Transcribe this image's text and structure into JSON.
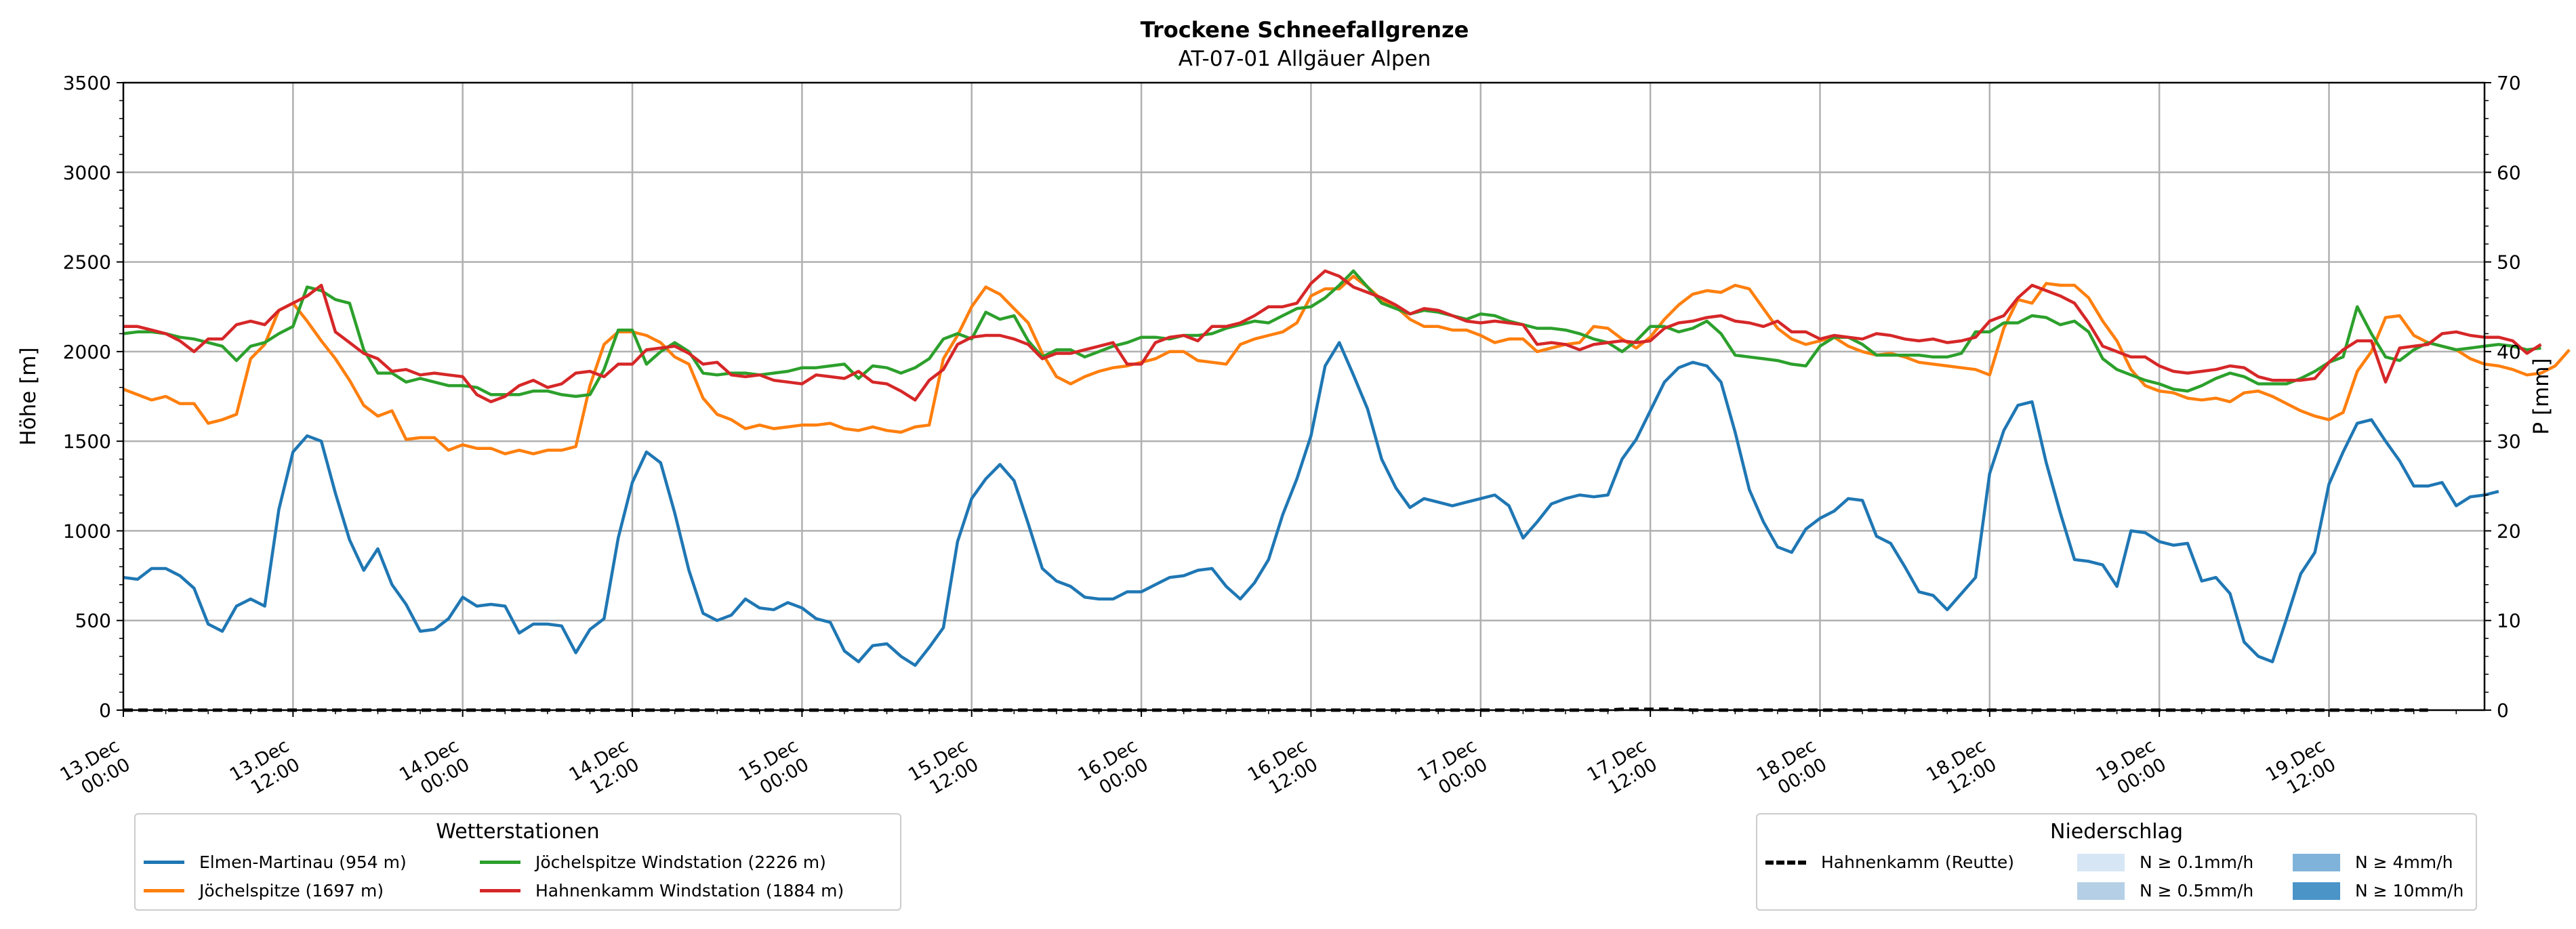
{
  "chart_data": {
    "type": "line",
    "title": "Trockene Schneefallgrenze",
    "subtitle": "AT-07-01 Allgäuer Alpen",
    "ylabel": "Höhe [m]",
    "ylabel_right": "P [mm]",
    "ylim": [
      0,
      3500
    ],
    "ylim_right": [
      0,
      70
    ],
    "yticks": [
      "0",
      "500",
      "1000",
      "1500",
      "2000",
      "2500",
      "3000",
      "3500"
    ],
    "yticks_right": [
      "0",
      "10",
      "20",
      "30",
      "40",
      "50",
      "60",
      "70"
    ],
    "xlim_hours": [
      0,
      167
    ],
    "xtick_labels": [
      [
        "13.Dec",
        "00:00"
      ],
      [
        "13.Dec",
        "12:00"
      ],
      [
        "14.Dec",
        "00:00"
      ],
      [
        "14.Dec",
        "12:00"
      ],
      [
        "15.Dec",
        "00:00"
      ],
      [
        "15.Dec",
        "12:00"
      ],
      [
        "16.Dec",
        "00:00"
      ],
      [
        "16.Dec",
        "12:00"
      ],
      [
        "17.Dec",
        "00:00"
      ],
      [
        "17.Dec",
        "12:00"
      ],
      [
        "18.Dec",
        "00:00"
      ],
      [
        "18.Dec",
        "12:00"
      ],
      [
        "19.Dec",
        "00:00"
      ],
      [
        "19.Dec",
        "12:00"
      ]
    ],
    "grid": true,
    "series": [
      {
        "name": "Elmen-Martinau (954 m)",
        "color": "#1f77b4",
        "values": [
          740,
          730,
          790,
          790,
          750,
          680,
          480,
          440,
          580,
          620,
          580,
          1120,
          1440,
          1530,
          1500,
          1210,
          950,
          780,
          900,
          700,
          590,
          440,
          450,
          510,
          630,
          580,
          590,
          580,
          430,
          480,
          480,
          470,
          320,
          450,
          510,
          960,
          1270,
          1440,
          1380,
          1100,
          780,
          540,
          500,
          530,
          620,
          570,
          560,
          600,
          570,
          510,
          490,
          330,
          270,
          360,
          370,
          300,
          250,
          350,
          460,
          940,
          1180,
          1290,
          1370,
          1280,
          1040,
          790,
          720,
          690,
          630,
          620,
          620,
          660,
          660,
          700,
          740,
          750,
          780,
          790,
          690,
          620,
          710,
          840,
          1090,
          1290,
          1530,
          1920,
          2050,
          1870,
          1680,
          1400,
          1240,
          1130,
          1180,
          1160,
          1140,
          1160,
          1180,
          1200,
          1140,
          960,
          1050,
          1150,
          1180,
          1200,
          1190,
          1200,
          1400,
          1510,
          1670,
          1830,
          1910,
          1940,
          1920,
          1830,
          1550,
          1230,
          1050,
          910,
          880,
          1010,
          1070,
          1110,
          1180,
          1170,
          970,
          930,
          800,
          660,
          640,
          560,
          650,
          740,
          1320,
          1560,
          1700,
          1720,
          1380,
          1100,
          840,
          830,
          810,
          690,
          1000,
          990,
          940,
          920,
          930,
          720,
          740,
          650,
          380,
          300,
          270,
          510,
          760,
          880,
          1260,
          1440,
          1600,
          1620,
          1500,
          1390,
          1250,
          1250,
          1270,
          1140,
          1190,
          1200,
          1220
        ]
      },
      {
        "name": "Jöchelspitze (1697 m)",
        "color": "#ff7f0e",
        "values": [
          1790,
          1760,
          1730,
          1750,
          1710,
          1710,
          1600,
          1620,
          1650,
          1960,
          2040,
          2230,
          2270,
          2170,
          2060,
          1960,
          1840,
          1700,
          1640,
          1670,
          1510,
          1520,
          1520,
          1450,
          1480,
          1460,
          1460,
          1430,
          1450,
          1430,
          1450,
          1450,
          1470,
          1810,
          2040,
          2110,
          2110,
          2090,
          2050,
          1970,
          1930,
          1740,
          1650,
          1620,
          1570,
          1590,
          1570,
          1580,
          1590,
          1590,
          1600,
          1570,
          1560,
          1580,
          1560,
          1550,
          1580,
          1590,
          1960,
          2090,
          2250,
          2360,
          2320,
          2240,
          2160,
          1990,
          1860,
          1820,
          1860,
          1890,
          1910,
          1920,
          1940,
          1960,
          2000,
          2000,
          1950,
          1940,
          1930,
          2040,
          2070,
          2090,
          2110,
          2160,
          2310,
          2350,
          2350,
          2420,
          2360,
          2290,
          2250,
          2180,
          2140,
          2140,
          2120,
          2120,
          2090,
          2050,
          2070,
          2070,
          2000,
          2020,
          2040,
          2050,
          2140,
          2130,
          2070,
          2020,
          2080,
          2180,
          2260,
          2320,
          2340,
          2330,
          2370,
          2350,
          2240,
          2130,
          2070,
          2040,
          2060,
          2080,
          2030,
          2000,
          1980,
          1990,
          1970,
          1940,
          1930,
          1920,
          1910,
          1900,
          1870,
          2130,
          2290,
          2270,
          2380,
          2370,
          2370,
          2300,
          2170,
          2060,
          1900,
          1810,
          1780,
          1770,
          1740,
          1730,
          1740,
          1720,
          1770,
          1780,
          1750,
          1710,
          1670,
          1640,
          1620,
          1660,
          1890,
          2000,
          2190,
          2200,
          2090,
          2050,
          2030,
          2010,
          1960,
          1930,
          1920,
          1900,
          1870,
          1880,
          1920,
          2010
        ]
      },
      {
        "name": "Jöchelspitze Windstation (2226 m)",
        "color": "#2ca02c",
        "values": [
          2100,
          2110,
          2110,
          2100,
          2080,
          2070,
          2050,
          2030,
          1950,
          2030,
          2050,
          2100,
          2140,
          2360,
          2340,
          2290,
          2270,
          2010,
          1880,
          1880,
          1830,
          1850,
          1830,
          1810,
          1810,
          1800,
          1760,
          1760,
          1760,
          1780,
          1780,
          1760,
          1750,
          1760,
          1900,
          2120,
          2120,
          1930,
          2000,
          2050,
          2000,
          1880,
          1870,
          1880,
          1880,
          1870,
          1880,
          1890,
          1910,
          1910,
          1920,
          1930,
          1850,
          1920,
          1910,
          1880,
          1910,
          1960,
          2070,
          2100,
          2070,
          2220,
          2180,
          2200,
          2060,
          1970,
          2010,
          2010,
          1970,
          2000,
          2030,
          2050,
          2080,
          2080,
          2070,
          2090,
          2090,
          2100,
          2130,
          2150,
          2170,
          2160,
          2200,
          2240,
          2250,
          2300,
          2370,
          2450,
          2360,
          2270,
          2240,
          2210,
          2230,
          2220,
          2200,
          2180,
          2210,
          2200,
          2170,
          2150,
          2130,
          2130,
          2120,
          2100,
          2070,
          2050,
          2000,
          2060,
          2140,
          2140,
          2110,
          2130,
          2170,
          2100,
          1980,
          1970,
          1960,
          1950,
          1930,
          1920,
          2030,
          2080,
          2080,
          2040,
          1980,
          1980,
          1980,
          1980,
          1970,
          1970,
          1990,
          2110,
          2110,
          2160,
          2160,
          2200,
          2190,
          2150,
          2170,
          2110,
          1960,
          1900,
          1870,
          1840,
          1820,
          1790,
          1780,
          1810,
          1850,
          1880,
          1860,
          1820,
          1820,
          1820,
          1850,
          1890,
          1940,
          1970,
          2250,
          2100,
          1970,
          1950,
          2010,
          2050,
          2030,
          2010,
          2020,
          2030,
          2040,
          2030,
          2010,
          2020
        ]
      },
      {
        "name": "Hahnenkamm Windstation (1884 m)",
        "color": "#d62728",
        "values": [
          2140,
          2140,
          2120,
          2100,
          2060,
          2000,
          2070,
          2070,
          2150,
          2170,
          2150,
          2230,
          2270,
          2310,
          2370,
          2110,
          2050,
          1990,
          1960,
          1890,
          1900,
          1870,
          1880,
          1870,
          1860,
          1760,
          1720,
          1750,
          1810,
          1840,
          1800,
          1820,
          1880,
          1890,
          1860,
          1930,
          1930,
          2010,
          2020,
          2030,
          1990,
          1930,
          1940,
          1870,
          1860,
          1870,
          1840,
          1830,
          1820,
          1870,
          1860,
          1850,
          1890,
          1830,
          1820,
          1780,
          1730,
          1840,
          1900,
          2040,
          2080,
          2090,
          2090,
          2070,
          2040,
          1960,
          1990,
          1990,
          2010,
          2030,
          2050,
          1930,
          1930,
          2050,
          2080,
          2090,
          2060,
          2140,
          2140,
          2160,
          2200,
          2250,
          2250,
          2270,
          2380,
          2450,
          2420,
          2360,
          2330,
          2300,
          2260,
          2210,
          2240,
          2230,
          2200,
          2170,
          2160,
          2170,
          2160,
          2150,
          2040,
          2050,
          2040,
          2010,
          2040,
          2050,
          2060,
          2050,
          2060,
          2130,
          2160,
          2170,
          2190,
          2200,
          2170,
          2160,
          2140,
          2170,
          2110,
          2110,
          2070,
          2090,
          2080,
          2070,
          2100,
          2090,
          2070,
          2060,
          2070,
          2050,
          2060,
          2080,
          2170,
          2200,
          2300,
          2370,
          2340,
          2310,
          2270,
          2160,
          2030,
          2000,
          1970,
          1970,
          1920,
          1890,
          1880,
          1890,
          1900,
          1920,
          1910,
          1860,
          1840,
          1840,
          1840,
          1850,
          1940,
          2010,
          2060,
          2060,
          1830,
          2020,
          2030,
          2040,
          2100,
          2110,
          2090,
          2080,
          2080,
          2060,
          1990,
          2040
        ]
      },
      {
        "name": "Hahnenkamm (Reutte)",
        "color": "#000000",
        "dashed": true,
        "axis": "right",
        "values": [
          0,
          0,
          0,
          0,
          0,
          0,
          0,
          0,
          0,
          0,
          0,
          0,
          0,
          0,
          0,
          0,
          0,
          0,
          0,
          0,
          0,
          0,
          0,
          0,
          0,
          0,
          0,
          0,
          0,
          0,
          0,
          0,
          0,
          0,
          0,
          0,
          0,
          0,
          0,
          0,
          0,
          0,
          0,
          0,
          0,
          0,
          0,
          0,
          0,
          0,
          0,
          0,
          0,
          0,
          0,
          0,
          0,
          0,
          0,
          0,
          0,
          0,
          0,
          0,
          0,
          0,
          0,
          0,
          0,
          0,
          0,
          0,
          0,
          0,
          0,
          0,
          0,
          0,
          0,
          0,
          0,
          0,
          0,
          0,
          0,
          0,
          0,
          0,
          0,
          0,
          0,
          0,
          0,
          0,
          0,
          0,
          0,
          0,
          0,
          0,
          0,
          0,
          0,
          0,
          0,
          0,
          0.1,
          0.1,
          0.1,
          0.1,
          0.1,
          0,
          0,
          0,
          0,
          0,
          0,
          0,
          0,
          0,
          0,
          0,
          0,
          0,
          0,
          0,
          0,
          0,
          0,
          0,
          0,
          0,
          0,
          0,
          0,
          0,
          0,
          0,
          0,
          0,
          0,
          0,
          0,
          0,
          0,
          0,
          0,
          0,
          0,
          0,
          0,
          0,
          0,
          0,
          0,
          0,
          0,
          0,
          0,
          0,
          0,
          0,
          0,
          0
        ]
      }
    ]
  },
  "legend_stations": {
    "title": "Wetterstationen",
    "entries": [
      {
        "label": "Elmen-Martinau (954 m)",
        "color": "#1f77b4"
      },
      {
        "label": "Jöchelspitze (1697 m)",
        "color": "#ff7f0e"
      },
      {
        "label": "Jöchelspitze Windstation (2226 m)",
        "color": "#2ca02c"
      },
      {
        "label": "Hahnenkamm Windstation (1884 m)",
        "color": "#d62728"
      }
    ]
  },
  "legend_precip": {
    "title": "Niederschlag",
    "line_label": "Hahnenkamm (Reutte)",
    "patches": [
      {
        "label": "N ≥ 0.1mm/h",
        "color": "#d6e6f4"
      },
      {
        "label": "N ≥ 0.5mm/h",
        "color": "#b5d0e6"
      },
      {
        "label": "N ≥ 4mm/h",
        "color": "#7fb3da"
      },
      {
        "label": "N ≥ 10mm/h",
        "color": "#4a94c8"
      }
    ]
  }
}
